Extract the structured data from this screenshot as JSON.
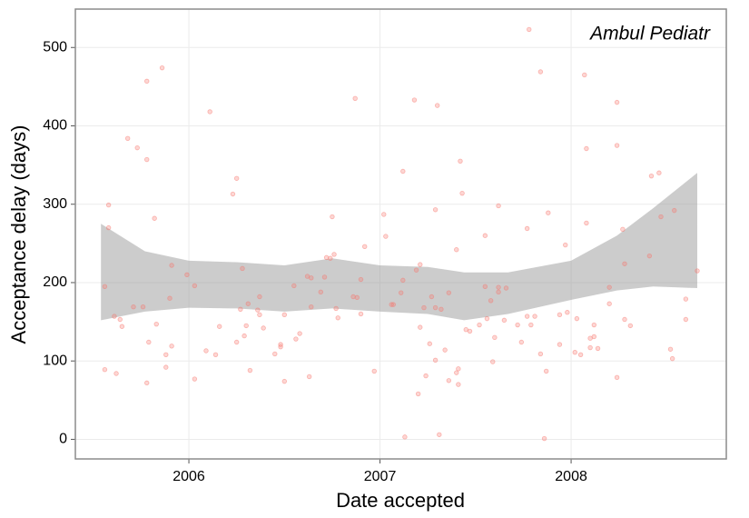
{
  "chart_data": {
    "type": "scatter",
    "annotation": "Ambul Pediatr",
    "xlabel": "Date accepted",
    "ylabel": "Acceptance delay (days)",
    "xlim": [
      2005.406,
      2008.812
    ],
    "xticks": [
      2006,
      2007,
      2008
    ],
    "ylim": [
      -25,
      549
    ],
    "yticks": [
      0,
      100,
      200,
      300,
      400,
      500
    ],
    "grid": true,
    "color": "#f8766d",
    "x": [
      2005.56,
      2005.56,
      2005.58,
      2005.58,
      2005.61,
      2005.62,
      2005.64,
      2005.65,
      2005.68,
      2005.71,
      2005.73,
      2005.76,
      2005.78,
      2005.78,
      2005.79,
      2005.78,
      2005.82,
      2005.83,
      2005.86,
      2005.88,
      2005.88,
      2005.9,
      2005.91,
      2005.91,
      2005.99,
      2006.03,
      2006.03,
      2006.09,
      2006.11,
      2006.14,
      2006.16,
      2006.23,
      2006.25,
      2006.25,
      2006.27,
      2006.28,
      2006.29,
      2006.3,
      2006.31,
      2006.32,
      2006.36,
      2006.37,
      2006.37,
      2006.39,
      2006.45,
      2006.48,
      2006.48,
      2006.5,
      2006.5,
      2006.55,
      2006.56,
      2006.58,
      2006.62,
      2006.64,
      2006.63,
      2006.64,
      2006.69,
      2006.71,
      2006.72,
      2006.74,
      2006.75,
      2006.76,
      2006.77,
      2006.78,
      2006.86,
      2006.87,
      2006.88,
      2006.9,
      2006.9,
      2006.92,
      2006.97,
      2007.02,
      2007.03,
      2007.06,
      2007.07,
      2007.11,
      2007.12,
      2007.12,
      2007.13,
      2007.18,
      2007.19,
      2007.2,
      2007.21,
      2007.21,
      2007.23,
      2007.24,
      2007.26,
      2007.27,
      2007.29,
      2007.29,
      2007.29,
      2007.3,
      2007.31,
      2007.32,
      2007.34,
      2007.36,
      2007.36,
      2007.4,
      2007.4,
      2007.41,
      2007.41,
      2007.42,
      2007.43,
      2007.45,
      2007.47,
      2007.52,
      2007.55,
      2007.55,
      2007.56,
      2007.58,
      2007.59,
      2007.6,
      2007.62,
      2007.62,
      2007.62,
      2007.65,
      2007.66,
      2007.72,
      2007.74,
      2007.78,
      2007.77,
      2007.77,
      2007.79,
      2007.81,
      2007.84,
      2007.84,
      2007.86,
      2007.87,
      2007.88,
      2007.94,
      2007.94,
      2007.97,
      2007.98,
      2008.02,
      2008.03,
      2008.05,
      2008.07,
      2008.08,
      2008.08,
      2008.1,
      2008.1,
      2008.12,
      2008.12,
      2008.14,
      2008.2,
      2008.2,
      2008.24,
      2008.24,
      2008.24,
      2008.27,
      2008.28,
      2008.28,
      2008.31,
      2008.41,
      2008.42,
      2008.46,
      2008.47,
      2008.52,
      2008.53,
      2008.54,
      2008.6,
      2008.6,
      2008.66
    ],
    "values": [
      195,
      89,
      299,
      270,
      157,
      84,
      153,
      144,
      384,
      169,
      372,
      169,
      457,
      357,
      124,
      72,
      282,
      147,
      474,
      108,
      92,
      180,
      222,
      119,
      210,
      196,
      77,
      113,
      418,
      108,
      144,
      313,
      333,
      124,
      166,
      218,
      132,
      145,
      173,
      88,
      165,
      182,
      159,
      142,
      109,
      121,
      118,
      159,
      74,
      196,
      128,
      135,
      208,
      206,
      80,
      169,
      188,
      207,
      232,
      231,
      284,
      236,
      167,
      155,
      182,
      435,
      181,
      204,
      160,
      246,
      87,
      287,
      259,
      172,
      172,
      187,
      203,
      342,
      3,
      433,
      216,
      58,
      223,
      143,
      168,
      81,
      122,
      182,
      293,
      168,
      101,
      426,
      6,
      166,
      114,
      187,
      75,
      242,
      85,
      90,
      70,
      355,
      314,
      140,
      138,
      146,
      260,
      195,
      154,
      177,
      99,
      130,
      194,
      188,
      298,
      152,
      193,
      146,
      124,
      523,
      269,
      157,
      146,
      157,
      469,
      109,
      1,
      87,
      289,
      159,
      121,
      248,
      162,
      111,
      154,
      108,
      465,
      371,
      276,
      129,
      117,
      146,
      131,
      116,
      194,
      173,
      430,
      375,
      79,
      268,
      224,
      153,
      145,
      234,
      336,
      340,
      284,
      115,
      103,
      292,
      179,
      153,
      215
    ],
    "band": {
      "color": "#999999",
      "x": [
        2005.54,
        2005.77,
        2006.0,
        2006.25,
        2006.5,
        2006.75,
        2007.0,
        2007.25,
        2007.44,
        2007.67,
        2008.0,
        2008.24,
        2008.43,
        2008.66
      ],
      "upper": [
        275,
        240,
        228,
        226,
        222,
        231,
        222,
        220,
        213,
        213,
        228,
        260,
        295,
        340
      ],
      "lower": [
        152,
        163,
        168,
        167,
        163,
        167,
        163,
        160,
        152,
        160,
        178,
        190,
        195,
        193
      ]
    }
  }
}
